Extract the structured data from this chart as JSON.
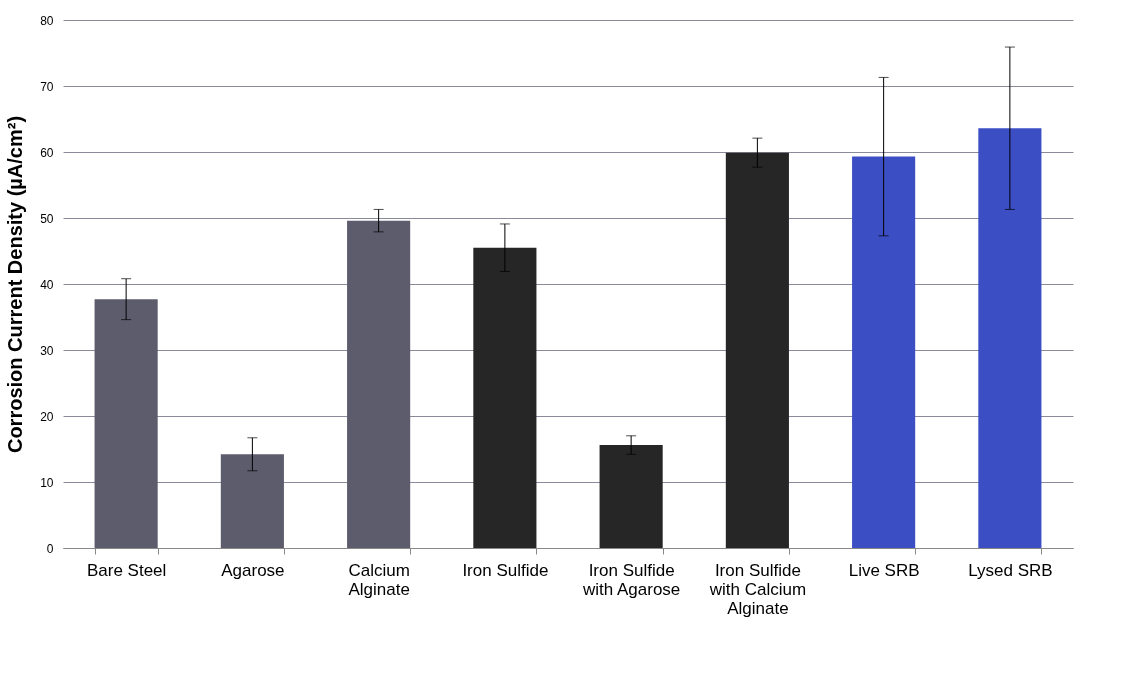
{
  "chart_data": {
    "type": "bar",
    "ylabel": "Corrosion Current Density (µA/cm²)",
    "categories": [
      "Bare Steel",
      "Agarose",
      "Calcium Alginate",
      "Iron Sulfide",
      "Iron Sulfide with Agarose",
      "Iron Sulfide with Calcium Alginate",
      "Live SRB",
      "Lysed SRB"
    ],
    "values": [
      37.7,
      14.2,
      49.6,
      45.5,
      15.6,
      59.9,
      59.3,
      63.6
    ],
    "errors": [
      3.1,
      2.5,
      1.7,
      3.6,
      1.4,
      2.2,
      12,
      12.3
    ],
    "colors": [
      "#5c5c6c",
      "#5c5c6c",
      "#5c5c6c",
      "#262626",
      "#262626",
      "#262626",
      "#3b4ec4",
      "#3b4ec4"
    ],
    "ylim": [
      0,
      80
    ],
    "yticks": [
      0,
      10,
      20,
      30,
      40,
      50,
      60,
      70,
      80
    ],
    "grid": "y"
  }
}
